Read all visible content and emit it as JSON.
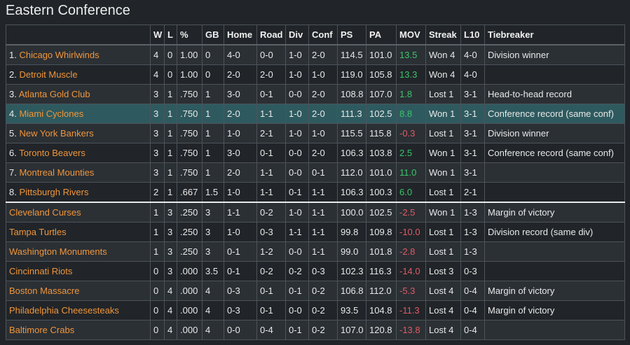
{
  "title": "Eastern Conference",
  "colors": {
    "link": "#f0953a",
    "positive": "#3cc46a",
    "negative": "#e05a63",
    "highlight_row": "#2e5a5f"
  },
  "columns": [
    "",
    "W",
    "L",
    "%",
    "GB",
    "Home",
    "Road",
    "Div",
    "Conf",
    "PS",
    "PA",
    "MOV",
    "Streak",
    "L10",
    "Tiebreaker"
  ],
  "rows": [
    {
      "seed": "1. ",
      "team": "Chicago Whirlwinds",
      "w": "4",
      "l": "0",
      "pct": "1.00",
      "gb": "0",
      "home": "4-0",
      "road": "0-0",
      "div": "1-0",
      "conf": "2-0",
      "ps": "114.5",
      "pa": "101.0",
      "mov": "13.5",
      "streak": "Won 4",
      "l10": "4-0",
      "tiebreaker": "Division winner"
    },
    {
      "seed": "2. ",
      "team": "Detroit Muscle",
      "w": "4",
      "l": "0",
      "pct": "1.00",
      "gb": "0",
      "home": "2-0",
      "road": "2-0",
      "div": "1-0",
      "conf": "1-0",
      "ps": "119.0",
      "pa": "105.8",
      "mov": "13.3",
      "streak": "Won 4",
      "l10": "4-0",
      "tiebreaker": ""
    },
    {
      "seed": "3. ",
      "team": "Atlanta Gold Club",
      "w": "3",
      "l": "1",
      "pct": ".750",
      "gb": "1",
      "home": "3-0",
      "road": "0-1",
      "div": "0-0",
      "conf": "2-0",
      "ps": "108.8",
      "pa": "107.0",
      "mov": "1.8",
      "streak": "Lost 1",
      "l10": "3-1",
      "tiebreaker": "Head-to-head record"
    },
    {
      "seed": "4. ",
      "team": "Miami Cyclones",
      "w": "3",
      "l": "1",
      "pct": ".750",
      "gb": "1",
      "home": "2-0",
      "road": "1-1",
      "div": "1-0",
      "conf": "2-0",
      "ps": "111.3",
      "pa": "102.5",
      "mov": "8.8",
      "streak": "Won 1",
      "l10": "3-1",
      "tiebreaker": "Conference record (same conf)"
    },
    {
      "seed": "5. ",
      "team": "New York Bankers",
      "w": "3",
      "l": "1",
      "pct": ".750",
      "gb": "1",
      "home": "1-0",
      "road": "2-1",
      "div": "1-0",
      "conf": "1-0",
      "ps": "115.5",
      "pa": "115.8",
      "mov": "-0.3",
      "streak": "Lost 1",
      "l10": "3-1",
      "tiebreaker": "Division winner"
    },
    {
      "seed": "6. ",
      "team": "Toronto Beavers",
      "w": "3",
      "l": "1",
      "pct": ".750",
      "gb": "1",
      "home": "3-0",
      "road": "0-1",
      "div": "0-0",
      "conf": "2-0",
      "ps": "106.3",
      "pa": "103.8",
      "mov": "2.5",
      "streak": "Won 1",
      "l10": "3-1",
      "tiebreaker": "Conference record (same conf)"
    },
    {
      "seed": "7. ",
      "team": "Montreal Mounties",
      "w": "3",
      "l": "1",
      "pct": ".750",
      "gb": "1",
      "home": "2-0",
      "road": "1-1",
      "div": "0-0",
      "conf": "0-1",
      "ps": "112.0",
      "pa": "101.0",
      "mov": "11.0",
      "streak": "Won 1",
      "l10": "3-1",
      "tiebreaker": ""
    },
    {
      "seed": "8. ",
      "team": "Pittsburgh Rivers",
      "w": "2",
      "l": "1",
      "pct": ".667",
      "gb": "1.5",
      "home": "1-0",
      "road": "1-1",
      "div": "0-1",
      "conf": "1-1",
      "ps": "106.3",
      "pa": "100.3",
      "mov": "6.0",
      "streak": "Lost 1",
      "l10": "2-1",
      "tiebreaker": ""
    },
    {
      "seed": "",
      "team": "Cleveland Curses",
      "w": "1",
      "l": "3",
      "pct": ".250",
      "gb": "3",
      "home": "1-1",
      "road": "0-2",
      "div": "1-0",
      "conf": "1-1",
      "ps": "100.0",
      "pa": "102.5",
      "mov": "-2.5",
      "streak": "Won 1",
      "l10": "1-3",
      "tiebreaker": "Margin of victory"
    },
    {
      "seed": "",
      "team": "Tampa Turtles",
      "w": "1",
      "l": "3",
      "pct": ".250",
      "gb": "3",
      "home": "1-0",
      "road": "0-3",
      "div": "1-1",
      "conf": "1-1",
      "ps": "99.8",
      "pa": "109.8",
      "mov": "-10.0",
      "streak": "Lost 1",
      "l10": "1-3",
      "tiebreaker": "Division record (same div)"
    },
    {
      "seed": "",
      "team": "Washington Monuments",
      "w": "1",
      "l": "3",
      "pct": ".250",
      "gb": "3",
      "home": "0-1",
      "road": "1-2",
      "div": "0-0",
      "conf": "1-1",
      "ps": "99.0",
      "pa": "101.8",
      "mov": "-2.8",
      "streak": "Lost 1",
      "l10": "1-3",
      "tiebreaker": ""
    },
    {
      "seed": "",
      "team": "Cincinnati Riots",
      "w": "0",
      "l": "3",
      "pct": ".000",
      "gb": "3.5",
      "home": "0-1",
      "road": "0-2",
      "div": "0-2",
      "conf": "0-3",
      "ps": "102.3",
      "pa": "116.3",
      "mov": "-14.0",
      "streak": "Lost 3",
      "l10": "0-3",
      "tiebreaker": ""
    },
    {
      "seed": "",
      "team": "Boston Massacre",
      "w": "0",
      "l": "4",
      "pct": ".000",
      "gb": "4",
      "home": "0-3",
      "road": "0-1",
      "div": "0-1",
      "conf": "0-2",
      "ps": "106.8",
      "pa": "112.0",
      "mov": "-5.3",
      "streak": "Lost 4",
      "l10": "0-4",
      "tiebreaker": "Margin of victory"
    },
    {
      "seed": "",
      "team": "Philadelphia Cheesesteaks",
      "w": "0",
      "l": "4",
      "pct": ".000",
      "gb": "4",
      "home": "0-3",
      "road": "0-1",
      "div": "0-0",
      "conf": "0-2",
      "ps": "93.5",
      "pa": "104.8",
      "mov": "-11.3",
      "streak": "Lost 4",
      "l10": "0-4",
      "tiebreaker": "Margin of victory"
    },
    {
      "seed": "",
      "team": "Baltimore Crabs",
      "w": "0",
      "l": "4",
      "pct": ".000",
      "gb": "4",
      "home": "0-0",
      "road": "0-4",
      "div": "0-1",
      "conf": "0-2",
      "ps": "107.0",
      "pa": "120.8",
      "mov": "-13.8",
      "streak": "Lost 4",
      "l10": "0-4",
      "tiebreaker": ""
    }
  ]
}
